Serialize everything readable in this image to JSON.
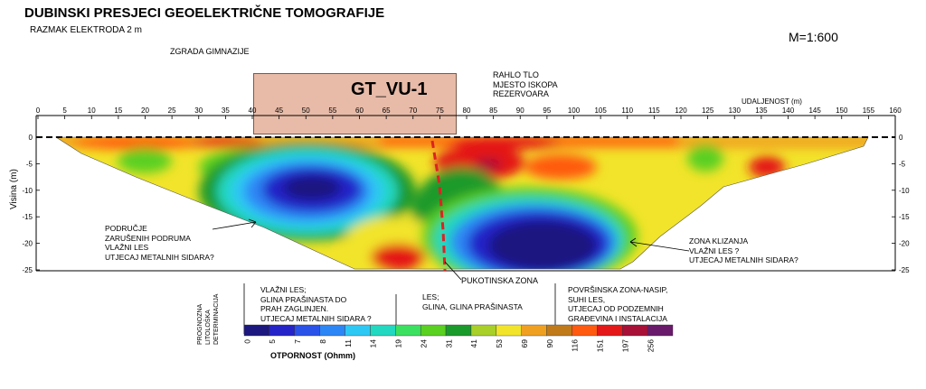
{
  "title": "DUBINSKI PRESJECI GEOELEKTRIČNE TOMOGRAFIJE",
  "subtitle": "RAZMAK ELEKTRODA 2 m",
  "scale": "M=1:600",
  "building": {
    "label": "ZGRADA GIMNAZIJE",
    "name": "GT_VU-1"
  },
  "annotations": {
    "excavation": [
      "RAHLO TLO",
      "MJESTO ISKOPA",
      "REZERVOARA"
    ],
    "distance_label": "UDALJENOST (m)",
    "depth_label": "Visina (m)",
    "left_zone": [
      "PODRUČJE",
      "ZARUŠENIH PODRUMA",
      "VLAŽNI LES",
      "UTJECAJ METALNIH SIDARA?"
    ],
    "right_zone": [
      "ZONA KLIZANJA",
      "VLAŽNI LES ?",
      "UTJECAJ METALNIH SIDARA?"
    ],
    "fault": "PUKOTINSKA ZONA"
  },
  "axes": {
    "x_ticks": [
      0,
      5,
      10,
      15,
      20,
      25,
      30,
      35,
      40,
      45,
      50,
      55,
      60,
      65,
      70,
      75,
      80,
      85,
      90,
      95,
      100,
      105,
      110,
      115,
      120,
      125,
      130,
      135,
      140,
      145,
      150,
      155,
      160
    ],
    "y_ticks": [
      0,
      -5,
      -10,
      -15,
      -20,
      -25
    ],
    "x_range": [
      0,
      160
    ],
    "y_range": [
      -25,
      0
    ]
  },
  "lithology": {
    "side_label": [
      "PROGNOZNA",
      "LITOLOŠKA",
      "DETERMINACIJA"
    ],
    "groups": [
      [
        "VLAŽNI LES;",
        "GLINA PRAŠINASTA DO",
        "PRAH ZAGLINJEN.",
        "UTJECAJ METALNIH SIDARA ?"
      ],
      [
        "LES;",
        "GLINA, GLINA PRAŠINASTA"
      ],
      [
        "POVRŠINSKA ZONA-NASIP,",
        "SUHI LES,",
        "UTJECAJ OD PODZEMNIH",
        "GRAĐEVINA I INSTALACIJA"
      ]
    ]
  },
  "legend": {
    "title": "OTPORNOST (Ohmm)",
    "values": [
      "0",
      "5",
      "7",
      "8",
      "11",
      "14",
      "19",
      "24",
      "31",
      "41",
      "53",
      "69",
      "90",
      "116",
      "151",
      "197",
      "256"
    ],
    "colors": [
      "#1c1880",
      "#2424c8",
      "#2a52e8",
      "#2d86f5",
      "#2ec8f5",
      "#22d8c0",
      "#3be060",
      "#5ad020",
      "#1a9a2a",
      "#a8d028",
      "#f2e42a",
      "#f0a020",
      "#c07a1a",
      "#ff5a10",
      "#e41818",
      "#a81038",
      "#6a1a6a"
    ]
  },
  "colors": {
    "fault_line": "#dd2222",
    "building_fill": "#e8bba8"
  }
}
